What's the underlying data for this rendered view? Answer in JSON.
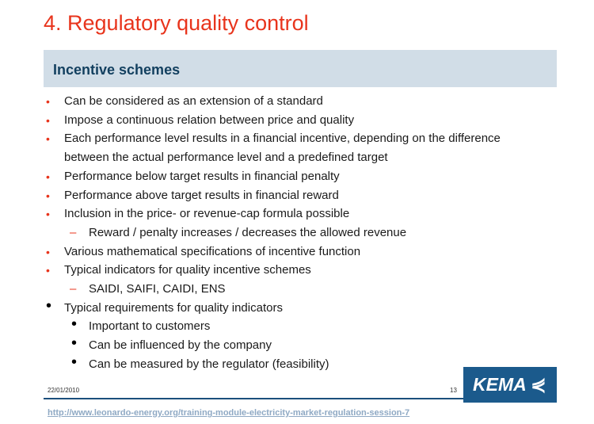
{
  "title": "4. Regulatory quality control",
  "section": "Incentive schemes",
  "items": [
    {
      "level": 1,
      "text": "Can be considered as an extension of a standard",
      "bullet": "red-dot"
    },
    {
      "level": 1,
      "text": "Impose a continuous relation between price and quality",
      "bullet": "red-dot"
    },
    {
      "level": 1,
      "text": "Each performance level results in a financial incentive, depending on the difference",
      "bullet": "red-dot"
    },
    {
      "level": 1,
      "text": "between the actual performance level and a predefined target",
      "bullet": "none"
    },
    {
      "level": 1,
      "text": "Performance below target results in financial penalty",
      "bullet": "red-dot"
    },
    {
      "level": 1,
      "text": "Performance above target results in financial reward",
      "bullet": "red-dot"
    },
    {
      "level": 1,
      "text": "Inclusion in the price- or revenue-cap formula possible",
      "bullet": "red-dot"
    },
    {
      "level": 2,
      "text": "Reward / penalty increases / decreases the allowed revenue",
      "bullet": "red-dash"
    },
    {
      "level": 1,
      "text": "Various mathematical specifications of incentive function",
      "bullet": "red-dot"
    },
    {
      "level": 1,
      "text": "Typical indicators for quality incentive schemes",
      "bullet": "red-dot"
    },
    {
      "level": 2,
      "text": "SAIDI, SAIFI, CAIDI, ENS",
      "bullet": "red-dash"
    },
    {
      "level": 1,
      "text": "Typical requirements for quality indicators",
      "bullet": "black-dot"
    },
    {
      "level": 2,
      "text": "Important to customers",
      "bullet": "black-dot"
    },
    {
      "level": 2,
      "text": "Can be influenced by the company",
      "bullet": "black-dot"
    },
    {
      "level": 2,
      "text": "Can be measured by the regulator (feasibility)",
      "bullet": "black-dot"
    }
  ],
  "footer": {
    "date": "22/01/2010",
    "page": "13",
    "logo": "KEMA",
    "link": "http://www.leonardo-energy.org/training-module-electricity-market-regulation-session-7"
  },
  "colors": {
    "title": "#e8341c",
    "band": "#d1dde7",
    "logo_bg": "#1b5a8c"
  }
}
